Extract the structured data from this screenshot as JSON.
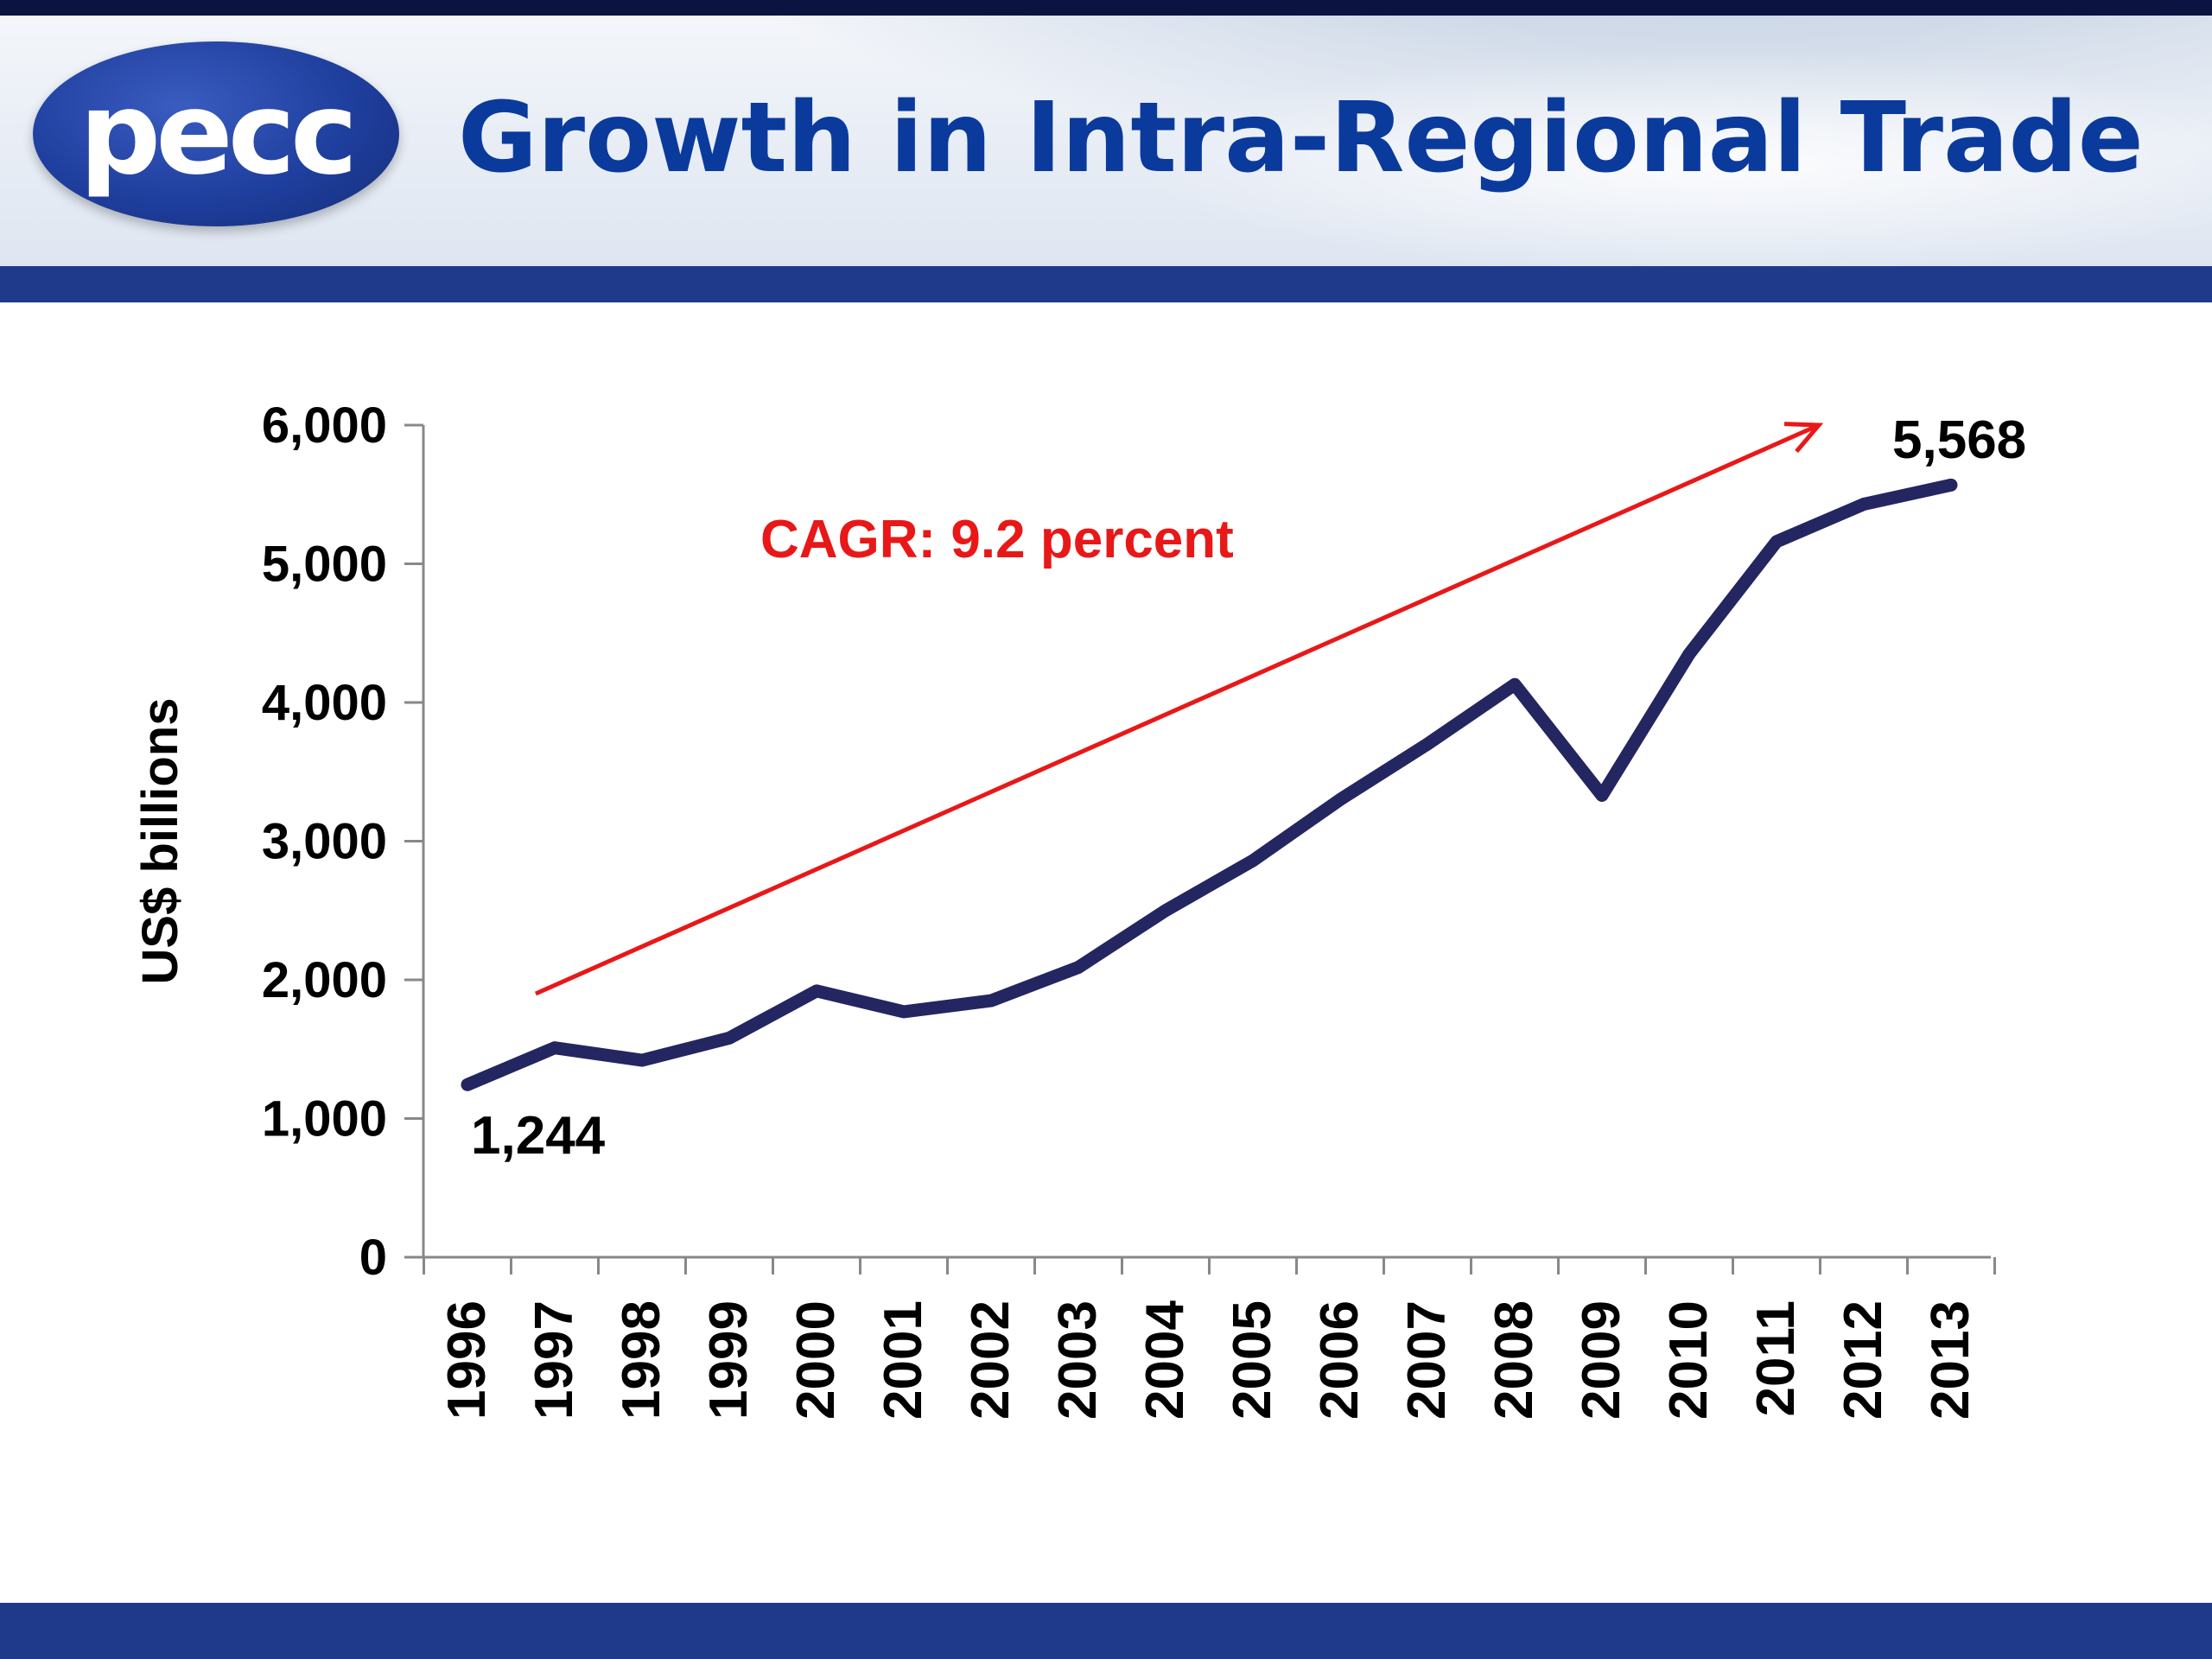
{
  "slide": {
    "title": "Growth in Intra-Regional Trade",
    "logo_text": "pecc"
  },
  "colors": {
    "header_band": "#1f3a8a",
    "title": "#0a3a9c",
    "series_line": "#232660",
    "trend_arrow": "#e81818",
    "annotation": "#e81818"
  },
  "chart_data": {
    "type": "line",
    "title": "",
    "xlabel": "",
    "ylabel": "US$ billions",
    "ylim": [
      0,
      6000
    ],
    "yticks": [
      0,
      1000,
      2000,
      3000,
      4000,
      5000,
      6000
    ],
    "ytick_labels": [
      "0",
      "1,000",
      "2,000",
      "3,000",
      "4,000",
      "5,000",
      "6,000"
    ],
    "grid": false,
    "categories": [
      "1996",
      "1997",
      "1998",
      "1999",
      "2000",
      "2001",
      "2002",
      "2003",
      "2004",
      "2005",
      "2006",
      "2007",
      "2008",
      "2009",
      "2010",
      "2011",
      "2012",
      "2013"
    ],
    "series": [
      {
        "values": [
          1244,
          1510,
          1420,
          1580,
          1920,
          1770,
          1850,
          2090,
          2500,
          2860,
          3300,
          3700,
          4130,
          3330,
          4350,
          5160,
          5430,
          5568
        ]
      }
    ],
    "data_labels": [
      {
        "category": "1996",
        "text": "1,244"
      },
      {
        "category": "2013",
        "text": "5,568"
      }
    ],
    "annotations": [
      {
        "text": "CAGR: 9.2 percent"
      }
    ]
  }
}
